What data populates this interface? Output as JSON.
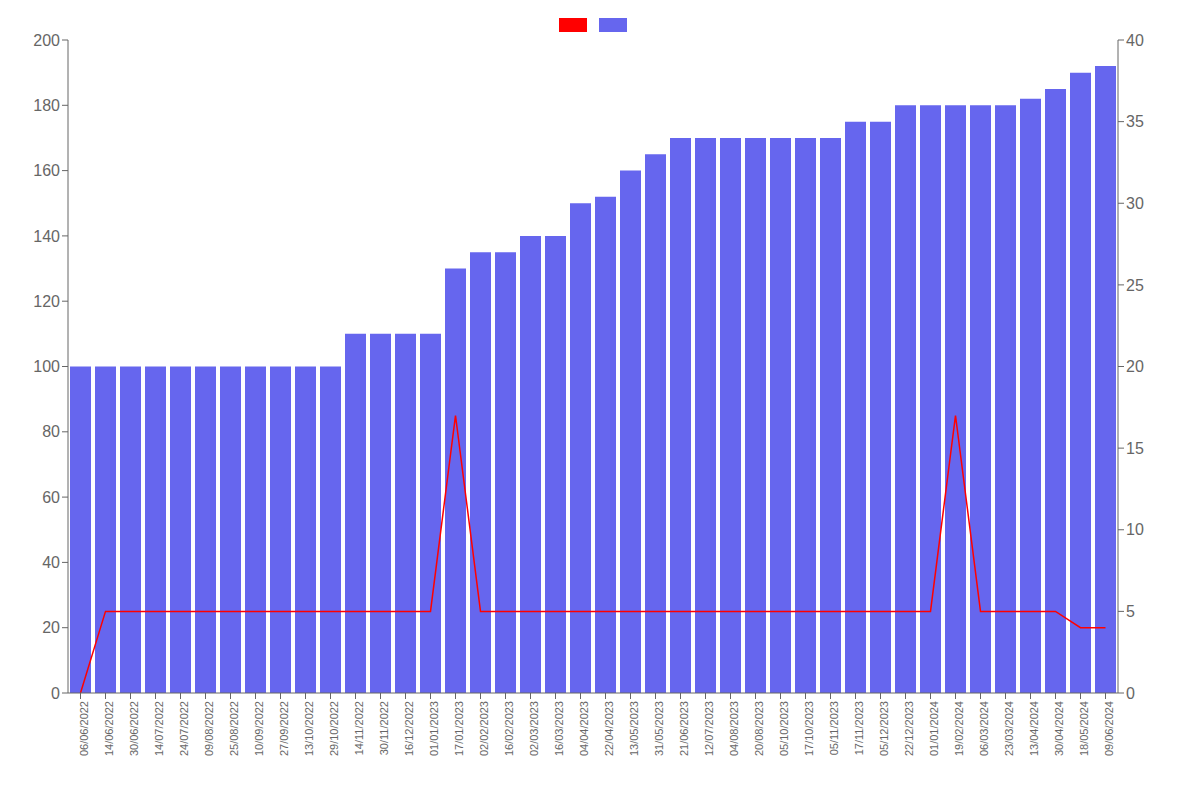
{
  "chart_data": {
    "type": "bar",
    "categories": [
      "06/06/2022",
      "14/06/2022",
      "30/06/2022",
      "14/07/2022",
      "24/07/2022",
      "09/08/2022",
      "25/08/2022",
      "10/09/2022",
      "27/09/2022",
      "13/10/2022",
      "29/10/2022",
      "14/11/2022",
      "30/11/2022",
      "16/12/2022",
      "01/01/2023",
      "17/01/2023",
      "02/02/2023",
      "16/02/2023",
      "02/03/2023",
      "16/03/2023",
      "04/04/2023",
      "22/04/2023",
      "13/05/2023",
      "31/05/2023",
      "21/06/2023",
      "12/07/2023",
      "04/08/2023",
      "20/08/2023",
      "05/10/2023",
      "17/10/2023",
      "05/11/2023",
      "17/11/2023",
      "05/12/2023",
      "22/12/2023",
      "01/01/2024",
      "19/02/2024",
      "06/03/2024",
      "23/03/2024",
      "13/04/2024",
      "30/04/2024",
      "18/05/2024",
      "09/06/2024"
    ],
    "series": [
      {
        "type": "bar",
        "color": "#6666ee",
        "values": [
          100,
          100,
          100,
          100,
          100,
          100,
          100,
          100,
          100,
          100,
          100,
          110,
          110,
          110,
          110,
          130,
          135,
          135,
          140,
          140,
          150,
          152,
          160,
          165,
          170,
          170,
          170,
          170,
          170,
          170,
          170,
          175,
          175,
          180,
          180,
          180,
          180,
          180,
          182,
          185,
          190,
          192
        ]
      },
      {
        "type": "line",
        "color": "#ff0000",
        "axis": "y2",
        "values": [
          0,
          5,
          5,
          5,
          5,
          5,
          5,
          5,
          5,
          5,
          5,
          5,
          5,
          5,
          5,
          17,
          5,
          5,
          5,
          5,
          5,
          5,
          5,
          5,
          5,
          5,
          5,
          5,
          5,
          5,
          5,
          5,
          5,
          5,
          5,
          17,
          5,
          5,
          5,
          5,
          4,
          4
        ]
      }
    ],
    "ylim": [
      0,
      200
    ],
    "yticks": [
      0,
      20,
      40,
      60,
      80,
      100,
      120,
      140,
      160,
      180,
      200
    ],
    "y2lim": [
      0,
      40
    ],
    "y2ticks": [
      0,
      5,
      10,
      15,
      20,
      25,
      30,
      35,
      40
    ],
    "grid": false,
    "legend": "top"
  }
}
